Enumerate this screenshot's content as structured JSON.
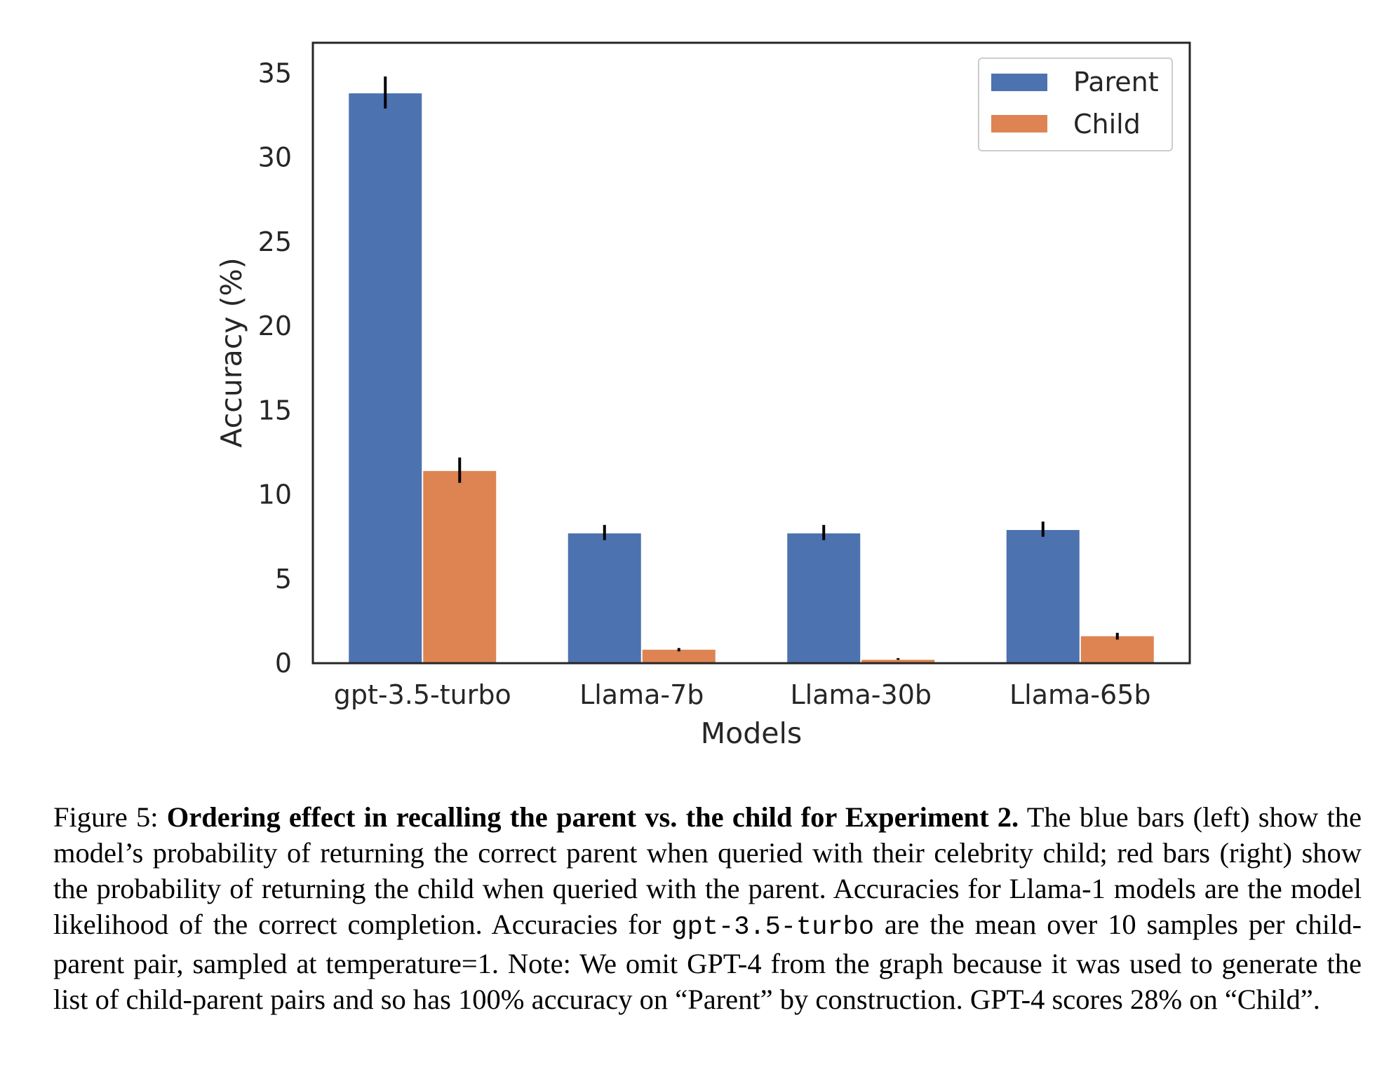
{
  "chart_data": {
    "type": "bar",
    "xlabel": "Models",
    "ylabel": "Accuracy (%)",
    "categories": [
      "gpt-3.5-turbo",
      "Llama-7b",
      "Llama-30b",
      "Llama-65b"
    ],
    "series": [
      {
        "name": "Parent",
        "color": "#4c72b0",
        "values": [
          33.8,
          7.7,
          7.7,
          7.9
        ],
        "err_low": [
          32.9,
          7.3,
          7.3,
          7.5
        ],
        "err_high": [
          34.8,
          8.2,
          8.2,
          8.4
        ]
      },
      {
        "name": "Child",
        "color": "#dd8452",
        "values": [
          11.4,
          0.8,
          0.2,
          1.6
        ],
        "err_low": [
          10.7,
          0.7,
          0.2,
          1.4
        ],
        "err_high": [
          12.2,
          0.9,
          0.3,
          1.8
        ]
      }
    ],
    "ylim": [
      0,
      36.8
    ],
    "yticks": [
      0,
      5,
      10,
      15,
      20,
      25,
      30,
      35
    ],
    "legend_position": "top-right",
    "grid": false
  },
  "caption": {
    "prefix": "Figure 5: ",
    "bold": "Ordering effect in recalling the parent vs. the child for Experiment 2.",
    "text_1": " The blue bars (left) show the model’s probability of returning the correct parent when queried with their celebrity child; red bars (right) show the probability of returning the child when queried with the parent. Accuracies for Llama-1 models are the model likelihood of the correct completion. Accuracies for ",
    "code": "gpt-3.5-turbo",
    "text_2": " are the mean over 10 samples per child-parent pair, sampled at temperature=1. Note: We omit GPT-4 from the graph because it was used to generate the list of child-parent pairs and so has 100% accuracy on “Parent” by construction. GPT-4 scores 28% on “Child”."
  }
}
